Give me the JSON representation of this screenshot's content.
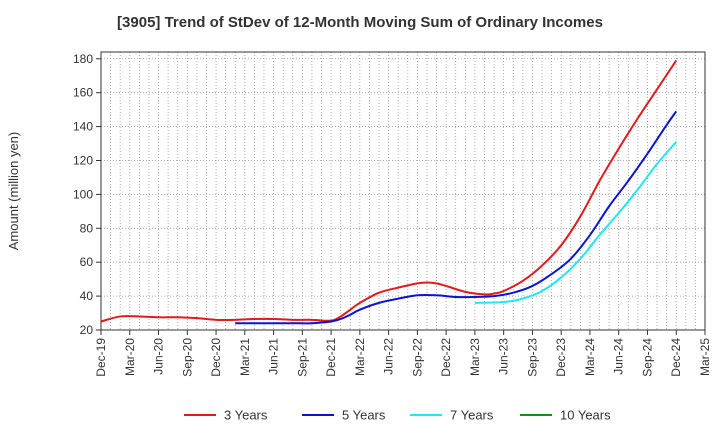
{
  "chart_data": {
    "type": "line",
    "title": "[3905]  Trend of StDev of 12-Month Moving Sum of Ordinary Incomes",
    "ylabel": "Amount (million yen)",
    "xlabel": "",
    "ylim": [
      20,
      184
    ],
    "yticks": [
      20,
      40,
      60,
      80,
      100,
      120,
      140,
      160,
      180
    ],
    "grid": true,
    "legend_position": "bottom",
    "xticklabels": [
      "Dec-19",
      "Mar-20",
      "Jun-20",
      "Sep-20",
      "Dec-20",
      "Mar-21",
      "Jun-21",
      "Sep-21",
      "Dec-21",
      "Mar-22",
      "Jun-22",
      "Sep-22",
      "Dec-22",
      "Mar-23",
      "Jun-23",
      "Sep-23",
      "Dec-23",
      "Mar-24",
      "Jun-24",
      "Sep-24",
      "Dec-24",
      "Mar-25"
    ],
    "series": [
      {
        "name": "3 Years",
        "color": "#e31a1c",
        "x": [
          "Dec-19",
          "Feb-20",
          "Apr-20",
          "Jun-20",
          "Aug-20",
          "Oct-20",
          "Dec-20",
          "Feb-21",
          "Apr-21",
          "Jun-21",
          "Aug-21",
          "Oct-21",
          "Dec-21",
          "Jan-22",
          "Feb-22",
          "Mar-22",
          "May-22",
          "Jul-22",
          "Sep-22",
          "Oct-22",
          "Nov-22",
          "Dec-22",
          "Feb-23",
          "Apr-23",
          "May-23",
          "Jun-23",
          "Aug-23",
          "Oct-23",
          "Dec-23",
          "Feb-24",
          "Apr-24",
          "Jun-24",
          "Aug-24",
          "Oct-24",
          "Dec-24"
        ],
        "values": [
          25,
          28,
          28,
          27.5,
          27.5,
          27,
          26,
          26,
          26.5,
          26.5,
          26,
          26,
          25.5,
          28,
          32,
          36,
          42,
          45,
          47.5,
          48,
          47.5,
          46,
          42.5,
          41,
          41.5,
          43,
          49,
          58,
          70,
          87,
          108,
          127,
          145,
          162,
          179
        ]
      },
      {
        "name": "5 Years",
        "color": "#0a14d1",
        "x": [
          "Feb-21",
          "Apr-21",
          "Jun-21",
          "Aug-21",
          "Oct-21",
          "Dec-21",
          "Jan-22",
          "Feb-22",
          "Mar-22",
          "May-22",
          "Jul-22",
          "Sep-22",
          "Nov-22",
          "Jan-23",
          "Mar-23",
          "May-23",
          "Jul-23",
          "Sep-23",
          "Nov-23",
          "Jan-24",
          "Mar-24",
          "May-24",
          "Jul-24",
          "Sep-24",
          "Nov-24",
          "Dec-24"
        ],
        "values": [
          24,
          24,
          24,
          24,
          24,
          25,
          26.5,
          29,
          32,
          36,
          38.5,
          40.5,
          40.5,
          39.5,
          39.5,
          40,
          42,
          46,
          53,
          62,
          76,
          93,
          108,
          124,
          141,
          149
        ]
      },
      {
        "name": "7 Years",
        "color": "#21e8ee",
        "x": [
          "Mar-23",
          "Jun-23",
          "Aug-23",
          "Oct-23",
          "Dec-23",
          "Feb-24",
          "Apr-24",
          "Jun-24",
          "Aug-24",
          "Oct-24",
          "Dec-24"
        ],
        "values": [
          36,
          36.5,
          38.5,
          43,
          51,
          62,
          76,
          89,
          103,
          118,
          131
        ]
      },
      {
        "name": "10 Years",
        "color": "#1a8a1a",
        "x": [],
        "values": []
      }
    ]
  }
}
